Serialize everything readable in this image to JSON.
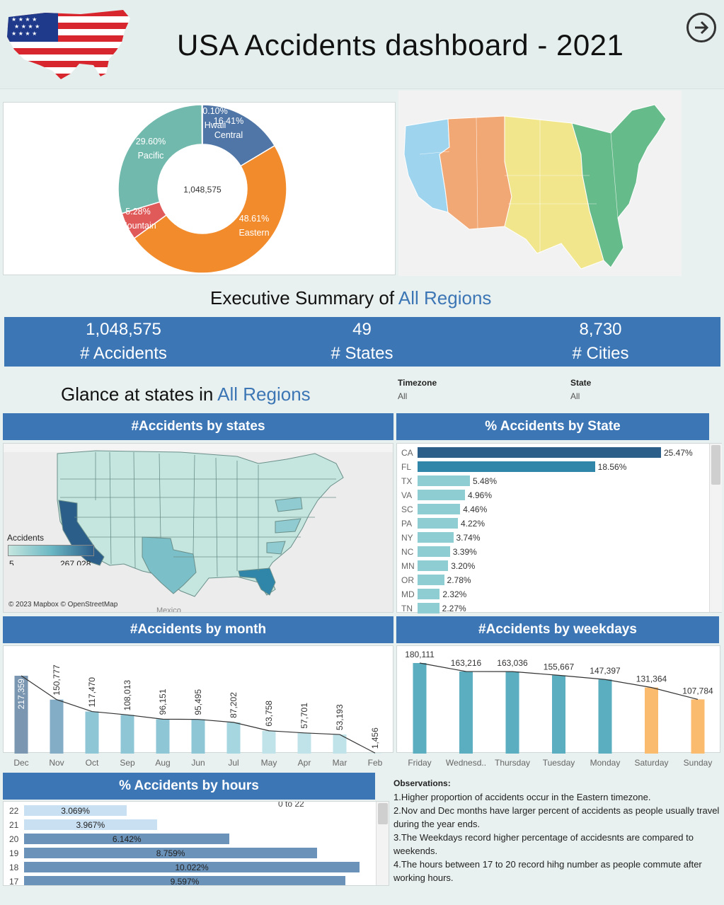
{
  "header": {
    "title": "USA Accidents dashboard - 2021"
  },
  "donut": {
    "center": "1,048,575",
    "slices": [
      {
        "label": "Central",
        "pct": "16.41%",
        "value": 16.41,
        "color": "#4f76a6"
      },
      {
        "label": "Eastern",
        "pct": "48.61%",
        "value": 48.61,
        "color": "#f28b2b"
      },
      {
        "label": "Mountain",
        "pct": "5.28%",
        "value": 5.28,
        "color": "#e05a5a"
      },
      {
        "label": "Pacific",
        "pct": "29.60%",
        "value": 29.6,
        "color": "#72b9ad"
      },
      {
        "label": "Hwaii",
        "pct": "0.10%",
        "value": 0.1,
        "color": "#4f76a6"
      }
    ]
  },
  "summary": {
    "title": "Executive Summary of ",
    "highlight": "All Regions",
    "kpis": [
      {
        "value": "1,048,575",
        "label": "# Accidents"
      },
      {
        "value": "49",
        "label": "# States"
      },
      {
        "value": "8,730",
        "label": "# Cities"
      }
    ]
  },
  "glance": {
    "title": "Glance at states  in ",
    "highlight": "All Regions",
    "filters": [
      {
        "label": "Timezone",
        "value": "All"
      },
      {
        "label": "State",
        "value": "All"
      }
    ]
  },
  "map_states": {
    "heading": "#Accidents by states",
    "legend_title": "Accidents",
    "legend_min": "5",
    "legend_max": "267,028",
    "credit": "© 2023 Mapbox © OpenStreetMap",
    "mexico": "Mexico"
  },
  "pct_state": {
    "heading": "% Accidents by State",
    "rows": [
      {
        "state": "CA",
        "pct": "25.47%",
        "value": 25.47
      },
      {
        "state": "FL",
        "pct": "18.56%",
        "value": 18.56
      },
      {
        "state": "TX",
        "pct": "5.48%",
        "value": 5.48
      },
      {
        "state": "VA",
        "pct": "4.96%",
        "value": 4.96
      },
      {
        "state": "SC",
        "pct": "4.46%",
        "value": 4.46
      },
      {
        "state": "PA",
        "pct": "4.22%",
        "value": 4.22
      },
      {
        "state": "NY",
        "pct": "3.74%",
        "value": 3.74
      },
      {
        "state": "NC",
        "pct": "3.39%",
        "value": 3.39
      },
      {
        "state": "MN",
        "pct": "3.20%",
        "value": 3.2
      },
      {
        "state": "OR",
        "pct": "2.78%",
        "value": 2.78
      },
      {
        "state": "MD",
        "pct": "2.32%",
        "value": 2.32
      },
      {
        "state": "TN",
        "pct": "2.27%",
        "value": 2.27
      }
    ]
  },
  "chart_data": [
    {
      "type": "bar",
      "title": "#Accidents by month",
      "categories": [
        "Dec",
        "Nov",
        "Oct",
        "Sep",
        "Aug",
        "Jun",
        "Jul",
        "May",
        "Apr",
        "Mar",
        "Feb"
      ],
      "values": [
        217359,
        150777,
        117470,
        108013,
        96151,
        95495,
        87202,
        63758,
        57701,
        53193,
        1456
      ],
      "labels": [
        "217,359",
        "150,777",
        "117,470",
        "108,013",
        "96,151",
        "95,495",
        "87,202",
        "63,758",
        "57,701",
        "53,193",
        "1,456"
      ]
    },
    {
      "type": "bar",
      "title": "#Accidents by weekdays",
      "categories": [
        "Friday",
        "Wednesd..",
        "Thursday",
        "Tuesday",
        "Monday",
        "Saturday",
        "Sunday"
      ],
      "values": [
        180111,
        163216,
        163036,
        155667,
        147397,
        131364,
        107784
      ],
      "labels": [
        "180,111",
        "163,216",
        "163,036",
        "155,667",
        "147,397",
        "131,364",
        "107,784"
      ],
      "colors": [
        "#5aaebf",
        "#5aaebf",
        "#5aaebf",
        "#5aaebf",
        "#5aaebf",
        "#fbbb6e",
        "#fbbb6e"
      ]
    },
    {
      "type": "bar",
      "title": "% Accidents by hours",
      "categories": [
        "22",
        "21",
        "20",
        "19",
        "18",
        "17"
      ],
      "values": [
        3.069,
        3.967,
        6.142,
        8.759,
        10.022,
        9.597
      ],
      "labels": [
        "3.069%",
        "3.967%",
        "6.142%",
        "8.759%",
        "10.022%",
        "9.597%"
      ],
      "annotation": "0 to 22"
    },
    {
      "type": "pie",
      "title": "",
      "categories": [
        "Central",
        "Eastern",
        "Mountain",
        "Pacific",
        "Hwaii"
      ],
      "values": [
        16.41,
        48.61,
        5.28,
        29.6,
        0.1
      ]
    }
  ],
  "observations": {
    "heading": "Observations:",
    "items": [
      "1.Higher proportion of accidents occur in the Eastern timezone.",
      "2.Nov and Dec months have larger percent of accidents as people usually travel during the year ends.",
      "3.The Weekdays record higher percentage of accidesnts are compared to weekends.",
      "4.The hours between 17 to 20 record hihg number as people commute after working hours."
    ]
  },
  "colors": {
    "accent": "#3d76b5",
    "header_bg": "#e4efed",
    "page_bg": "#e8f1ef"
  }
}
